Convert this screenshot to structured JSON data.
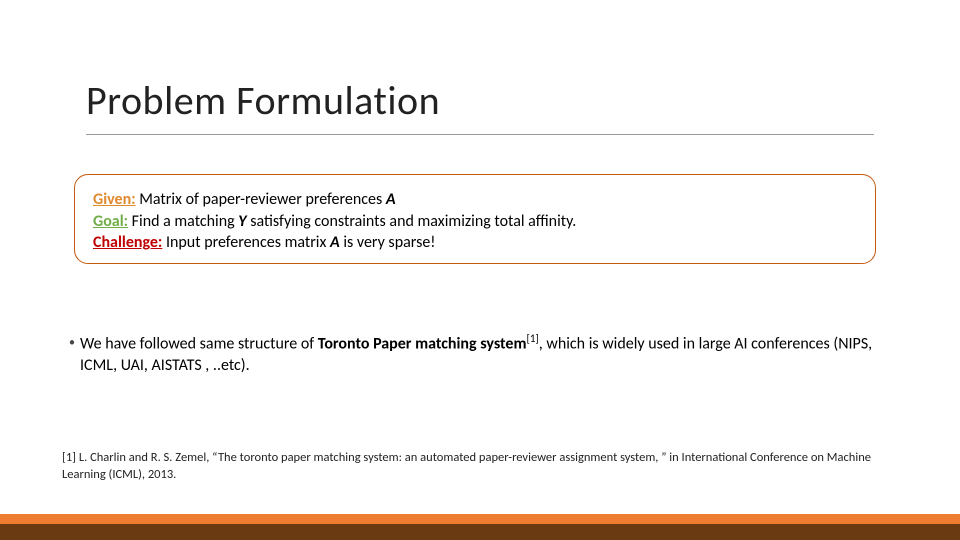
{
  "title": "Problem Formulation",
  "box": {
    "given_label": "Given:",
    "given_text": " Matrix of paper-reviewer preferences ",
    "given_sym": "A",
    "goal_label": "Goal:",
    "goal_text1": "  Find a matching ",
    "goal_sym": "Y",
    "goal_text2": " satisfying constraints and maximizing total affinity.",
    "challenge_label": "Challenge:",
    "challenge_text1": " Input preferences matrix ",
    "challenge_sym": "A",
    "challenge_text2": " is very sparse!"
  },
  "bullet": {
    "pre": "We have followed same structure of ",
    "bold": "Toronto Paper matching system",
    "sup": "[1]",
    "post": ", which is widely used in large AI conferences (NIPS, ICML, UAI, AISTATS , ..etc)."
  },
  "reference": "[1]  L. Charlin and R. S. Zemel, “The toronto paper matching system: an automated paper-reviewer  assignment system, ” in International Conference on Machine Learning (ICML), 2013.",
  "colors": {
    "accent_orange": "#ed7d31",
    "accent_dark": "#6a3b12",
    "box_border": "#c55a11",
    "given": "#e08a2f",
    "goal": "#70ad47",
    "challenge": "#c00000"
  }
}
